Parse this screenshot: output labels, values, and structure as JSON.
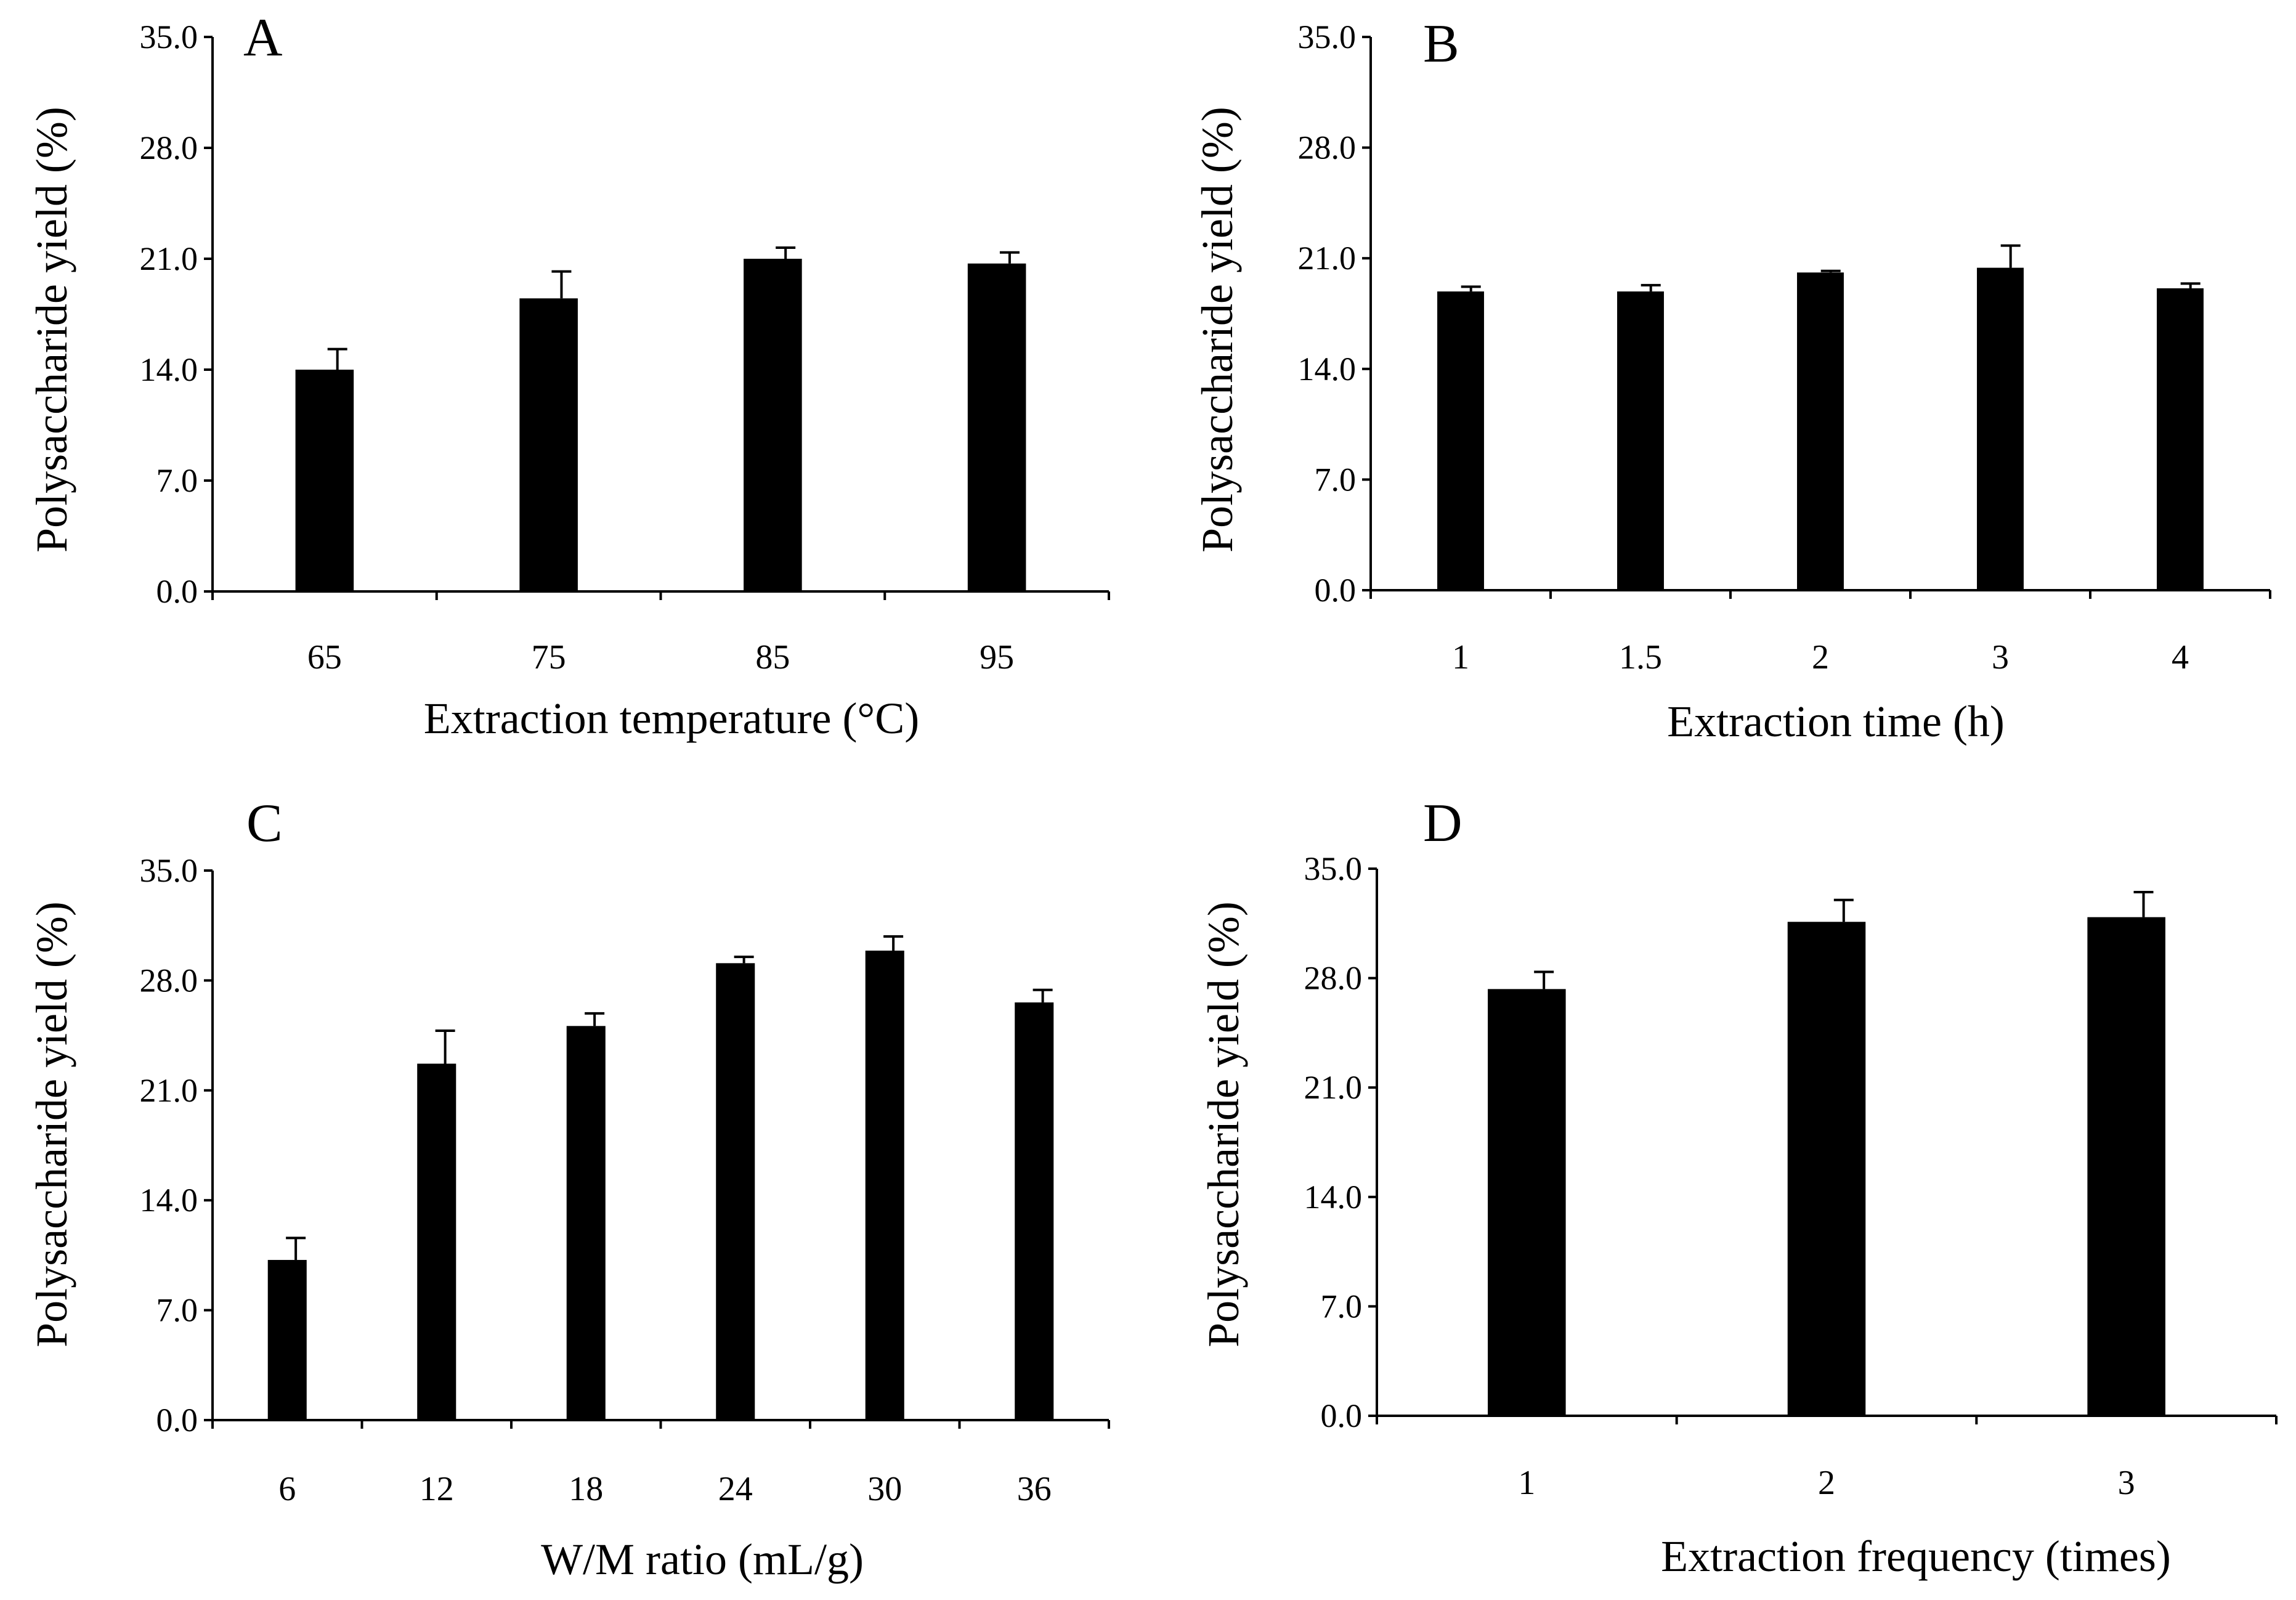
{
  "chart_data": [
    {
      "type": "bar",
      "panel": "A",
      "title": "",
      "categories": [
        "65",
        "75",
        "85",
        "95"
      ],
      "values": [
        14.0,
        18.5,
        21.0,
        20.7
      ],
      "errors": [
        1.3,
        1.7,
        0.7,
        0.7
      ],
      "xlabel": "Extraction temperature (°C)",
      "ylabel": "Polysaccharide  yield (%)",
      "ylim": [
        0,
        35
      ],
      "yticks": [
        "0.0",
        "7.0",
        "14.0",
        "21.0",
        "28.0",
        "35.0"
      ],
      "grid": false
    },
    {
      "type": "bar",
      "panel": "B",
      "title": "",
      "categories": [
        "1",
        "1.5",
        "2",
        "3",
        "4"
      ],
      "values": [
        18.9,
        18.9,
        20.1,
        20.4,
        19.1
      ],
      "errors": [
        0.3,
        0.4,
        0.1,
        1.4,
        0.3
      ],
      "xlabel": "Extraction time (h)",
      "ylabel": "Polysaccharide  yield (%)",
      "ylim": [
        0,
        35
      ],
      "yticks": [
        "0.0",
        "7.0",
        "14.0",
        "21.0",
        "28.0",
        "35.0"
      ],
      "grid": false
    },
    {
      "type": "bar",
      "panel": "C",
      "title": "",
      "categories": [
        "6",
        "12",
        "18",
        "24",
        "30",
        "36"
      ],
      "values": [
        10.2,
        22.7,
        25.1,
        29.1,
        29.9,
        26.6
      ],
      "errors": [
        1.4,
        2.1,
        0.8,
        0.4,
        0.9,
        0.8
      ],
      "xlabel": "W/M ratio (mL/g)",
      "ylabel": "Polysaccharide  yield (%)",
      "ylim": [
        0,
        35
      ],
      "yticks": [
        "0.0",
        "7.0",
        "14.0",
        "21.0",
        "28.0",
        "35.0"
      ],
      "grid": false
    },
    {
      "type": "bar",
      "panel": "D",
      "title": "",
      "categories": [
        "1",
        "2",
        "3"
      ],
      "values": [
        27.3,
        31.6,
        31.9
      ],
      "errors": [
        1.1,
        1.4,
        1.6
      ],
      "xlabel": "Extraction  frequency (times)",
      "ylabel": "Polysaccharide  yield (%)",
      "ylim": [
        0,
        35
      ],
      "yticks": [
        "0.0",
        "7.0",
        "14.0",
        "21.0",
        "28.0",
        "35.0"
      ],
      "grid": false
    }
  ],
  "colors": {
    "bar": "#000000",
    "axis": "#000000",
    "background": "#ffffff"
  }
}
